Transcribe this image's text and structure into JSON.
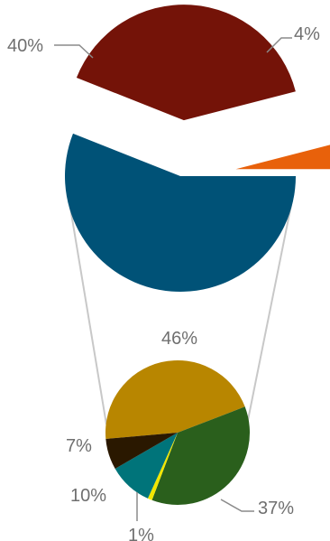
{
  "chart_data": [
    {
      "type": "pie",
      "title": "",
      "slices": [
        {
          "label": "40%",
          "value": 40,
          "color": "#741308"
        },
        {
          "label": "4%",
          "value": 4,
          "color": "#e8610b"
        },
        {
          "label": "",
          "value": 56,
          "color": "#005277"
        }
      ],
      "exploded_slices": [
        "40%",
        "4%"
      ]
    },
    {
      "type": "pie",
      "title": "",
      "detail_of": "main pie large slice",
      "slices": [
        {
          "label": "46%",
          "value": 46,
          "color": "#b88600"
        },
        {
          "label": "37%",
          "value": 37,
          "color": "#2a5f1c"
        },
        {
          "label": "1%",
          "value": 1,
          "color": "#f2e600"
        },
        {
          "label": "10%",
          "value": 10,
          "color": "#00747a"
        },
        {
          "label": "7%",
          "value": 7,
          "color": "#2a1800"
        }
      ]
    }
  ]
}
